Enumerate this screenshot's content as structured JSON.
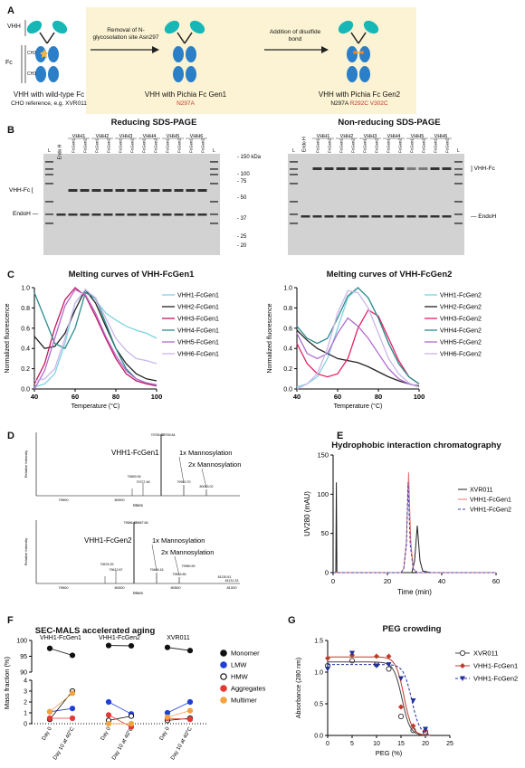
{
  "panels": {
    "A": "A",
    "B": "B",
    "C": "C",
    "D": "D",
    "E": "E",
    "F": "F",
    "G": "G"
  },
  "panelA": {
    "domain_vhh": "VHH",
    "domain_fc": "Fc",
    "domain_ch2": "CH2",
    "domain_ch3": "CH3",
    "step1": "Removal of N-glycosolation site Asn297",
    "step2": "Addition of disulfide bond",
    "construct1_title": "VHH with wild-type Fc",
    "construct1_sub": "CHO reference, e.g. XVR011",
    "construct2_title": "VHH with Pichia Fc Gen1",
    "construct2_sub": "N297A",
    "construct3_title": "VHH with Pichia Fc Gen2",
    "construct3_sub_a": "N297A",
    "construct3_sub_b": "R292C V302C"
  },
  "panelB": {
    "reducing_title": "Reducing SDS-PAGE",
    "nonreducing_title": "Non-reducing SDS-PAGE",
    "lane_L": "L",
    "lane_endoH": "Endo H",
    "vhh_groups": [
      "VHH1",
      "VHH2",
      "VHH3",
      "VHH4",
      "VHH5",
      "VHH6"
    ],
    "fc_lanes": [
      "FcGen1",
      "FcGen2"
    ],
    "markers": [
      "150 kDa",
      "100",
      "75",
      "50",
      "37",
      "25",
      "20"
    ],
    "label_vhhfc": "VHH-Fc",
    "label_endoh": "EndoH"
  },
  "panelC": {
    "title1": "Melting curves of VHH-FcGen1",
    "title2": "Melting curves of VHH-FcGen2",
    "ylabel": "Normalized fluorescence",
    "xlabel": "Temperature (°C)",
    "chart_data": [
      {
        "type": "line",
        "title": "Melting curves of VHH-FcGen1",
        "xlim": [
          40,
          100
        ],
        "ylim": [
          0,
          1.0
        ],
        "xticks": [
          40,
          60,
          80,
          100
        ],
        "yticks": [
          0,
          0.2,
          0.4,
          0.6,
          0.8,
          1.0
        ],
        "series": [
          {
            "name": "VHH1-FcGen1",
            "color": "#7fd3e0",
            "x": [
              40,
              45,
              50,
              55,
              60,
              65,
              70,
              75,
              80,
              85,
              90,
              95,
              100
            ],
            "y": [
              0.02,
              0.05,
              0.15,
              0.45,
              0.85,
              0.97,
              0.88,
              0.75,
              0.68,
              0.62,
              0.58,
              0.55,
              0.5
            ]
          },
          {
            "name": "VHH2-FcGen1",
            "color": "#222222",
            "x": [
              40,
              45,
              50,
              55,
              60,
              65,
              70,
              75,
              80,
              85,
              90,
              95,
              100
            ],
            "y": [
              0.52,
              0.4,
              0.42,
              0.55,
              0.78,
              0.98,
              0.85,
              0.62,
              0.4,
              0.25,
              0.15,
              0.1,
              0.08
            ]
          },
          {
            "name": "VHH3-FcGen1",
            "color": "#c2185b",
            "x": [
              40,
              45,
              50,
              55,
              60,
              65,
              70,
              75,
              80,
              85,
              90,
              95,
              100
            ],
            "y": [
              0.05,
              0.25,
              0.6,
              0.88,
              1.0,
              0.92,
              0.72,
              0.5,
              0.3,
              0.15,
              0.08,
              0.05,
              0.03
            ]
          },
          {
            "name": "VHH4-FcGen1",
            "color": "#2e8b8b",
            "x": [
              40,
              45,
              50,
              55,
              60,
              65,
              70,
              75,
              80,
              85,
              90,
              95,
              100
            ],
            "y": [
              0.95,
              0.7,
              0.45,
              0.4,
              0.6,
              0.95,
              0.9,
              0.65,
              0.4,
              0.2,
              0.1,
              0.06,
              0.04
            ]
          },
          {
            "name": "VHH5-FcGen1",
            "color": "#b06ad0",
            "x": [
              40,
              45,
              50,
              55,
              60,
              65,
              70,
              75,
              80,
              85,
              90,
              95,
              100
            ],
            "y": [
              0.0,
              0.18,
              0.5,
              0.82,
              0.98,
              0.93,
              0.75,
              0.52,
              0.33,
              0.18,
              0.1,
              0.06,
              0.04
            ]
          },
          {
            "name": "VHH6-FcGen1",
            "color": "#c9b6e8",
            "x": [
              40,
              45,
              50,
              55,
              60,
              65,
              70,
              75,
              80,
              85,
              90,
              95,
              100
            ],
            "y": [
              0.08,
              0.1,
              0.2,
              0.5,
              0.85,
              0.98,
              0.9,
              0.7,
              0.5,
              0.38,
              0.3,
              0.28,
              0.25
            ]
          }
        ]
      },
      {
        "type": "line",
        "title": "Melting curves of VHH-FcGen2",
        "xlim": [
          40,
          100
        ],
        "ylim": [
          0,
          1.0
        ],
        "xticks": [
          40,
          60,
          80,
          100
        ],
        "yticks": [
          0,
          0.2,
          0.4,
          0.6,
          0.8,
          1.0
        ],
        "series": [
          {
            "name": "VHH1-FcGen2",
            "color": "#7fd3e0",
            "x": [
              40,
              45,
              50,
              55,
              60,
              65,
              70,
              75,
              80,
              85,
              90,
              95,
              100
            ],
            "y": [
              0.02,
              0.05,
              0.12,
              0.3,
              0.6,
              0.9,
              1.0,
              0.9,
              0.7,
              0.45,
              0.25,
              0.12,
              0.05
            ]
          },
          {
            "name": "VHH2-FcGen2",
            "color": "#222222",
            "x": [
              40,
              45,
              50,
              55,
              60,
              65,
              70,
              75,
              80,
              85,
              90,
              95,
              100
            ],
            "y": [
              0.58,
              0.48,
              0.4,
              0.35,
              0.3,
              0.28,
              0.26,
              0.22,
              0.17,
              0.12,
              0.08,
              0.05,
              0.03
            ]
          },
          {
            "name": "VHH3-FcGen2",
            "color": "#e91e63",
            "x": [
              40,
              45,
              50,
              55,
              60,
              65,
              70,
              75,
              80,
              85,
              90,
              95,
              100
            ],
            "y": [
              0.45,
              0.25,
              0.15,
              0.12,
              0.15,
              0.3,
              0.6,
              0.78,
              0.72,
              0.5,
              0.28,
              0.12,
              0.05
            ]
          },
          {
            "name": "VHH4-FcGen2",
            "color": "#2e8b8b",
            "x": [
              40,
              45,
              50,
              55,
              60,
              65,
              70,
              75,
              80,
              85,
              90,
              95,
              100
            ],
            "y": [
              0.62,
              0.5,
              0.45,
              0.5,
              0.7,
              0.92,
              1.0,
              0.9,
              0.7,
              0.45,
              0.25,
              0.12,
              0.05
            ]
          },
          {
            "name": "VHH5-FcGen2",
            "color": "#b06ad0",
            "x": [
              40,
              45,
              50,
              55,
              60,
              65,
              70,
              75,
              80,
              85,
              90,
              95,
              100
            ],
            "y": [
              0.55,
              0.35,
              0.3,
              0.35,
              0.55,
              0.7,
              0.62,
              0.5,
              0.35,
              0.2,
              0.1,
              0.05,
              0.02
            ]
          },
          {
            "name": "VHH6-FcGen2",
            "color": "#c9b6e8",
            "x": [
              40,
              45,
              50,
              55,
              60,
              65,
              70,
              75,
              80,
              85,
              90,
              95,
              100
            ],
            "y": [
              0.0,
              0.05,
              0.15,
              0.4,
              0.75,
              0.97,
              0.95,
              0.8,
              0.55,
              0.3,
              0.15,
              0.06,
              0.02
            ]
          }
        ]
      }
    ]
  },
  "panelD": {
    "label1": "VHH1-FcGen1",
    "label2": "VHH1-FcGen2",
    "mann1": "1x Mannosylation",
    "mann2": "2x Mannosylation",
    "ylabel": "Relative Intensity",
    "xlabel": "Mass",
    "peaks1": [
      "79755.32",
      "79759.84",
      "79659.06",
      "79727.48",
      "79920.70",
      "80083.02"
    ],
    "peaks2": [
      "79586.41",
      "79687.66",
      "79676.39",
      "79612.67",
      "79468.16",
      "79816.85",
      "79980.69",
      "81130.61",
      "81131.33"
    ],
    "ticks1": [
      "79500",
      "80000"
    ],
    "ticks2": [
      "79500",
      "80000",
      "80500",
      "81000"
    ]
  },
  "panelE": {
    "title": "Hydrophobic interaction chromatography",
    "ylabel": "UV280 (mAU)",
    "xlabel": "Time (min)",
    "chart_data": {
      "type": "line",
      "title": "Hydrophobic interaction chromatography",
      "xlim": [
        0,
        60
      ],
      "ylim": [
        0,
        150
      ],
      "xticks": [
        0,
        20,
        40,
        60
      ],
      "yticks": [
        0,
        50,
        100,
        150
      ],
      "series": [
        {
          "name": "XVR011",
          "color": "#222222",
          "dash": "",
          "x": [
            0,
            1,
            1.2,
            1.4,
            2,
            25,
            29,
            30,
            31,
            32,
            33,
            36,
            60
          ],
          "y": [
            0,
            0,
            115,
            0,
            0,
            0,
            0,
            15,
            60,
            15,
            2,
            0,
            0
          ]
        },
        {
          "name": "VHH1-FcGen1",
          "color": "#e57373",
          "dash": "",
          "x": [
            0,
            25,
            26,
            27,
            27.8,
            28.6,
            29.5,
            31,
            60
          ],
          "y": [
            0,
            0,
            5,
            40,
            128,
            40,
            5,
            0,
            0
          ]
        },
        {
          "name": "VHH1-FcGen2",
          "color": "#3f3fb5",
          "dash": "3,2",
          "x": [
            0,
            25,
            26,
            27,
            27.6,
            28.4,
            29.5,
            31,
            60
          ],
          "y": [
            0,
            0,
            5,
            35,
            115,
            35,
            5,
            0,
            0
          ]
        }
      ]
    }
  },
  "panelF": {
    "title": "SEC-MALS accelerated aging",
    "ylabel": "Mass fraction (%)",
    "groups": [
      "VHH1-FcGen1",
      "VHH1-FcGen2",
      "XVR011"
    ],
    "xlabels": [
      "Day 0",
      "Day 10 at 40°C"
    ],
    "legend": [
      {
        "name": "Monomer",
        "color": "#111111"
      },
      {
        "name": "LMW",
        "color": "#1f3fd8"
      },
      {
        "name": "HMW",
        "color": "#ffffff"
      },
      {
        "name": "Aggregates",
        "color": "#e53935"
      },
      {
        "name": "Multimer",
        "color": "#f4a340"
      }
    ],
    "chart_data": {
      "type": "scatter",
      "ylim_upper": [
        90,
        100
      ],
      "ylim_lower": [
        0,
        4
      ],
      "yticks_upper": [
        90,
        95,
        100
      ],
      "yticks_lower": [
        0,
        1,
        2,
        3,
        4
      ],
      "series": [
        {
          "name": "Monomer",
          "values": [
            [
              97.5,
              95.3
            ],
            [
              98.4,
              98.3
            ],
            [
              97.8,
              96.8
            ]
          ]
        },
        {
          "name": "LMW",
          "values": [
            [
              1.1,
              1.4
            ],
            [
              2.0,
              0.9
            ],
            [
              1.0,
              2.0
            ]
          ]
        },
        {
          "name": "HMW",
          "values": [
            [
              0.4,
              3.0
            ],
            [
              0.3,
              0.7
            ],
            [
              0.3,
              0.5
            ]
          ]
        },
        {
          "name": "Aggregates",
          "values": [
            [
              0.5,
              0.5
            ],
            [
              0.8,
              -0.3
            ],
            [
              0.5,
              0.4
            ]
          ]
        },
        {
          "name": "Multimer",
          "values": [
            [
              1.1,
              2.8
            ],
            [
              0.0,
              0.0
            ],
            [
              0.6,
              1.2
            ]
          ]
        }
      ]
    }
  },
  "panelG": {
    "title": "PEG crowding",
    "ylabel": "Absorbance (280 nm)",
    "xlabel": "PEG (%)",
    "chart_data": {
      "type": "scatter",
      "title": "PEG crowding",
      "xlim": [
        0,
        25
      ],
      "ylim": [
        0,
        1.5
      ],
      "xticks": [
        0,
        5,
        10,
        15,
        20,
        25
      ],
      "yticks": [
        0,
        0.5,
        1.0,
        1.5
      ],
      "series": [
        {
          "name": "XVR011",
          "color": "#444444",
          "marker": "circle",
          "x": [
            0,
            5,
            10,
            12.5,
            15,
            17.5,
            20
          ],
          "y": [
            1.1,
            1.18,
            1.12,
            1.05,
            0.3,
            0.08,
            0.05
          ],
          "fit_mid": 15.2,
          "fit_top": 1.16
        },
        {
          "name": "VHH1-FcGen1",
          "color": "#c0392b",
          "marker": "diamond",
          "x": [
            0,
            5,
            10,
            12.5,
            15,
            17.5,
            20
          ],
          "y": [
            1.22,
            1.27,
            1.25,
            1.25,
            0.45,
            0.15,
            0.08
          ],
          "fit_mid": 15.6,
          "fit_top": 1.24
        },
        {
          "name": "VHH1-FcGen2",
          "color": "#1f2f9a",
          "marker": "triangle",
          "x": [
            0,
            5,
            10,
            12.5,
            15,
            17.5,
            20
          ],
          "y": [
            1.05,
            1.3,
            1.1,
            1.12,
            0.9,
            0.55,
            0.1
          ],
          "fit_mid": 17.2,
          "fit_top": 1.12
        }
      ]
    }
  }
}
